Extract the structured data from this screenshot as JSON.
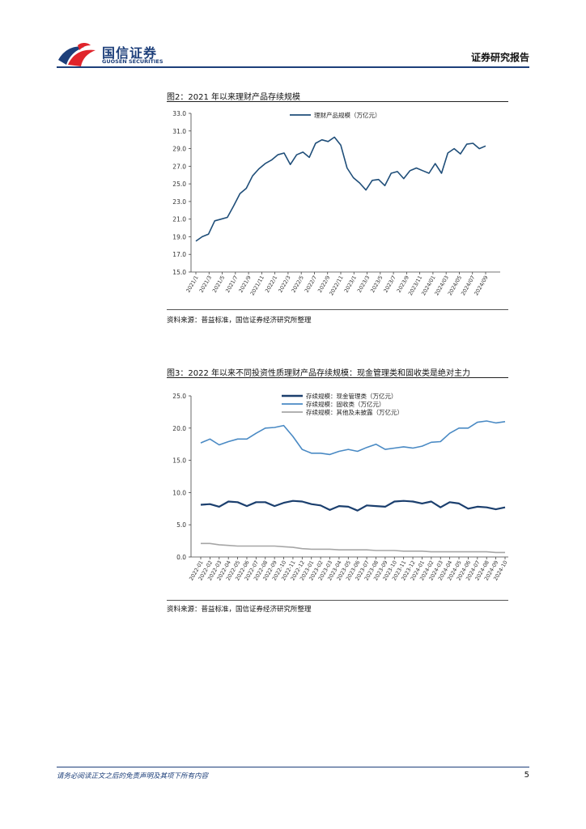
{
  "header": {
    "brand_cn": "国信证券",
    "brand_en": "GUOSEN SECURITIES",
    "report_type": "证券研究报告",
    "brand_color": "#1d3f7a",
    "logo_red": "#e0242b",
    "logo_blue": "#1d3f7a"
  },
  "figure2": {
    "title": "图2：2021 年以来理财产品存续规模",
    "source": "资料来源：普益标准，国信证券经济研究所整理"
  },
  "figure3": {
    "title": "图3：2022 年以来不同投资性质理财产品存续规模：现金管理类和固收类是绝对主力",
    "source": "资料来源：普益标准，国信证券经济研究所整理"
  },
  "footer": {
    "disclaimer": "请务必阅读正文之后的免责声明及其项下所有内容",
    "page_number": "5"
  },
  "chart_data": [
    {
      "type": "line",
      "title": "",
      "xlabel": "",
      "ylabel": "",
      "ylim": [
        15.0,
        33.0
      ],
      "yticks": [
        "15.0",
        "17.0",
        "19.0",
        "21.0",
        "23.0",
        "25.0",
        "27.0",
        "29.0",
        "31.0",
        "33.0"
      ],
      "x_tick_labels": [
        "2021/1",
        "2021/3",
        "2021/5",
        "2021/7",
        "2021/9",
        "2021/11",
        "2022/1",
        "2022/3",
        "2022/5",
        "2022/7",
        "2022/9",
        "2022/11",
        "2023/1",
        "2023/3",
        "2023/5",
        "2023/7",
        "2023/9",
        "2023/11",
        "2024/01",
        "2024/03",
        "2024/05",
        "2024/07",
        "2024/09"
      ],
      "legend_position": "top-center",
      "grid": false,
      "series": [
        {
          "name": "理财产品规模（万亿元）",
          "color": "#1f4e79",
          "values": [
            18.5,
            19.0,
            19.3,
            20.8,
            21.0,
            21.2,
            22.5,
            23.9,
            24.5,
            25.9,
            26.7,
            27.3,
            27.7,
            28.3,
            28.5,
            27.2,
            28.3,
            28.6,
            28.0,
            29.6,
            30.0,
            29.8,
            30.3,
            29.4,
            26.8,
            25.7,
            25.1,
            24.3,
            25.4,
            25.5,
            24.8,
            26.2,
            26.4,
            25.6,
            26.5,
            26.8,
            26.5,
            26.2,
            27.3,
            26.2,
            28.5,
            29.0,
            28.4,
            29.5,
            29.6,
            29.0,
            29.3
          ]
        }
      ]
    },
    {
      "type": "line",
      "title": "",
      "xlabel": "",
      "ylabel": "",
      "ylim": [
        0.0,
        25.0
      ],
      "yticks": [
        "0.0",
        "5.0",
        "10.0",
        "15.0",
        "20.0",
        "25.0"
      ],
      "x_tick_labels": [
        "2022-01",
        "2022-02",
        "2022-03",
        "2022-04",
        "2022-05",
        "2022-06",
        "2022-07",
        "2022-08",
        "2022-09",
        "2022-10",
        "2022-11",
        "2022-12",
        "2023-01",
        "2023-02",
        "2023-03",
        "2023-04",
        "2023-05",
        "2023-06",
        "2023-07",
        "2023-08",
        "2023-09",
        "2023-10",
        "2023-11",
        "2023-12",
        "2024-01",
        "2024-02",
        "2024-03",
        "2024-04",
        "2024-05",
        "2024-06",
        "2024-07",
        "2024-08",
        "2024-09",
        "2024-10"
      ],
      "legend_position": "top-center",
      "grid": false,
      "series": [
        {
          "name": "存续规模：现金管理类（万亿元）",
          "color": "#1b3f6e",
          "values": [
            8.1,
            8.2,
            7.8,
            8.6,
            8.5,
            7.9,
            8.5,
            8.5,
            7.9,
            8.4,
            8.7,
            8.6,
            8.2,
            8.0,
            7.3,
            7.9,
            7.8,
            7.2,
            8.0,
            7.9,
            7.8,
            8.6,
            8.7,
            8.6,
            8.3,
            8.6,
            7.7,
            8.5,
            8.3,
            7.5,
            7.8,
            7.7,
            7.4,
            7.7
          ]
        },
        {
          "name": "存续规模：固收类（万亿元）",
          "color": "#4a8ac4",
          "values": [
            17.7,
            18.3,
            17.4,
            17.9,
            18.3,
            18.3,
            19.2,
            20.0,
            20.1,
            20.4,
            18.7,
            16.7,
            16.1,
            16.1,
            15.9,
            16.4,
            16.7,
            16.4,
            17.0,
            17.5,
            16.7,
            16.9,
            17.1,
            16.9,
            17.2,
            17.8,
            17.9,
            19.2,
            20.0,
            20.0,
            20.9,
            21.1,
            20.8,
            21.0
          ]
        },
        {
          "name": "存续规模：其他及未披露（万亿元）",
          "color": "#a6a6a6",
          "values": [
            2.1,
            2.1,
            1.9,
            1.8,
            1.7,
            1.7,
            1.7,
            1.7,
            1.7,
            1.6,
            1.5,
            1.3,
            1.2,
            1.2,
            1.2,
            1.1,
            1.1,
            1.1,
            1.1,
            1.0,
            1.0,
            1.0,
            0.9,
            0.9,
            0.9,
            0.8,
            0.8,
            0.8,
            0.8,
            0.8,
            0.8,
            0.8,
            0.7,
            0.7
          ]
        }
      ]
    }
  ]
}
